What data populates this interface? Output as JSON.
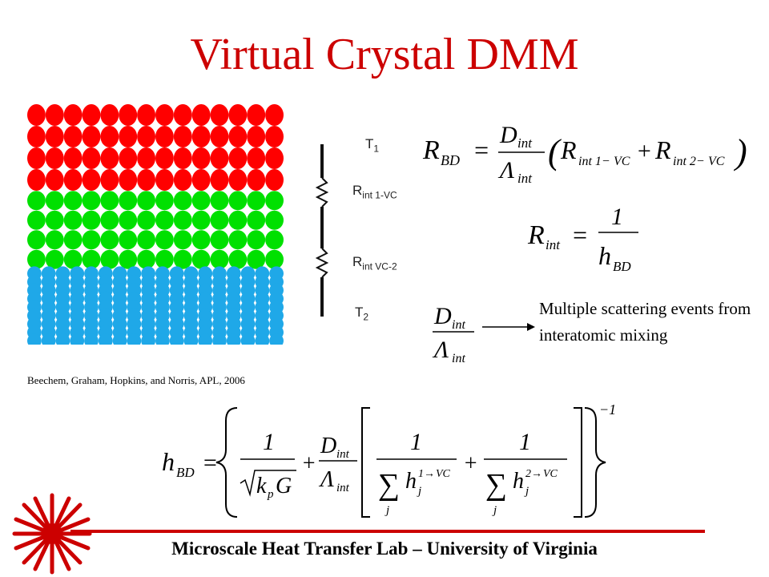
{
  "slide": {
    "title": "Virtual Crystal DMM",
    "citation": "Beechem, Graham, Hopkins, and Norris, APL, 2006",
    "note": "Multiple scattering events from interatomic mixing",
    "footer": "Microscale Heat Transfer Lab – University of Virginia"
  },
  "circuit": {
    "t1": "T",
    "t1_sub": "1",
    "r1": "R",
    "r1_sub": "int 1-VC",
    "r2": "R",
    "r2_sub": "int VC-2",
    "t2": "T",
    "t2_sub": "2"
  },
  "lattice": {
    "colors": {
      "top": "#ff0000",
      "middle": "#00e000",
      "bottom": "#1fa8e8"
    }
  },
  "colors": {
    "accent": "#cc0000"
  },
  "icons": {
    "logo": "laser-burst-logo",
    "arrow": "right-arrow-icon"
  }
}
